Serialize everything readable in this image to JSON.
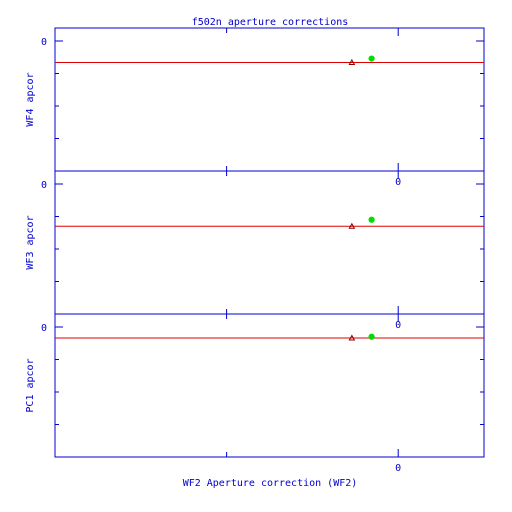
{
  "chart_data": {
    "type": "scatter",
    "title": "f502n aperture corrections",
    "xlabel": "WF2 Aperture correction (WF2)",
    "xlim": [
      -2.0,
      0.5
    ],
    "x_tick_label": "0",
    "panels": [
      {
        "name": "WF4",
        "ylabel": "WF4 apcor",
        "ylim": [
          -0.2,
          0.02
        ],
        "y_tick_label": "0",
        "ref_line_y": -0.033,
        "points": [
          {
            "x": -0.27,
            "y": -0.033,
            "marker": "triangle",
            "color": "#880000"
          },
          {
            "x": -0.155,
            "y": -0.027,
            "marker": "circle",
            "color": "#00dd00"
          }
        ]
      },
      {
        "name": "WF3",
        "ylabel": "WF3 apcor",
        "ylim": [
          -0.2,
          0.02
        ],
        "y_tick_label": "0",
        "ref_line_y": -0.065,
        "points": [
          {
            "x": -0.27,
            "y": -0.065,
            "marker": "triangle",
            "color": "#880000"
          },
          {
            "x": -0.155,
            "y": -0.055,
            "marker": "circle",
            "color": "#00dd00"
          }
        ]
      },
      {
        "name": "PC1",
        "ylabel": "PC1 apcor",
        "ylim": [
          -0.2,
          0.02
        ],
        "y_tick_label": "0",
        "ref_line_y": -0.017,
        "points": [
          {
            "x": -0.27,
            "y": -0.017,
            "marker": "triangle",
            "color": "#880000"
          },
          {
            "x": -0.155,
            "y": -0.015,
            "marker": "circle",
            "color": "#00dd00"
          }
        ]
      }
    ],
    "colors": {
      "axes": "#0000cc",
      "ref_line": "#dd0000"
    }
  }
}
